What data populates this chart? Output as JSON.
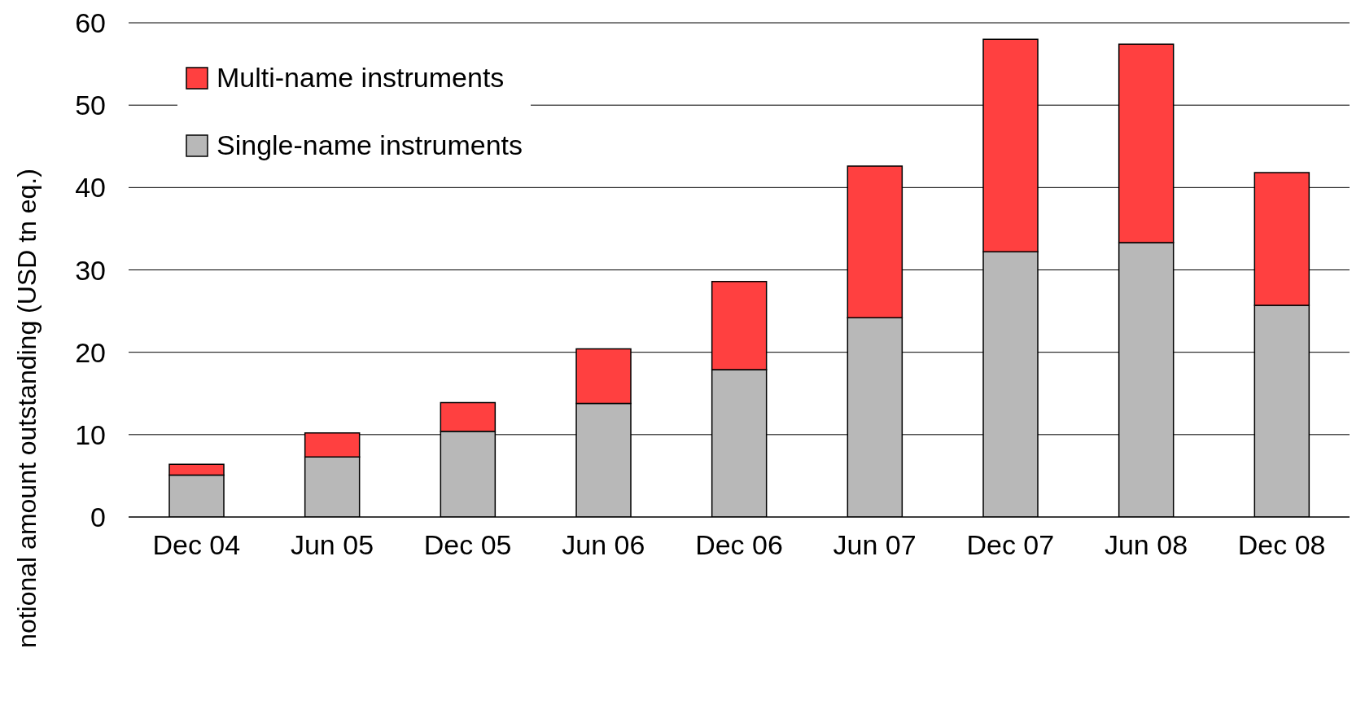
{
  "chart_data": {
    "type": "bar",
    "ylabel": "notional amount outstanding (USD tn eq.)",
    "categories": [
      "Dec 04",
      "Jun 05",
      "Dec 05",
      "Jun 06",
      "Dec 06",
      "Jun 07",
      "Dec 07",
      "Jun 08",
      "Dec 08"
    ],
    "stacked": true,
    "series": [
      {
        "name": "Single-name instruments",
        "color": "#b8b8b8",
        "values": [
          5.1,
          7.3,
          10.4,
          13.8,
          17.9,
          24.2,
          32.2,
          33.3,
          25.7
        ]
      },
      {
        "name": "Multi-name instruments",
        "color": "#ff4040",
        "values": [
          1.3,
          2.9,
          3.5,
          6.6,
          10.7,
          18.4,
          25.8,
          24.1,
          16.1
        ]
      }
    ],
    "ylim": [
      0,
      60
    ],
    "yticks": [
      0,
      10,
      20,
      30,
      40,
      50,
      60
    ],
    "grid": "y",
    "legend": "top left"
  }
}
